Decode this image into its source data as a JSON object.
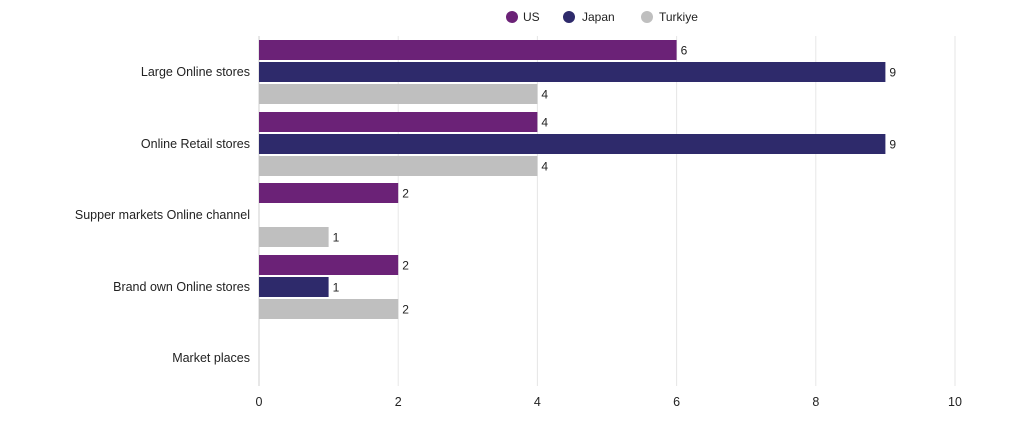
{
  "chart_data": {
    "type": "bar",
    "orientation": "horizontal",
    "categories": [
      "Large Online stores",
      "Online Retail stores",
      "Supper markets Online channel",
      "Brand own Online stores",
      "Market places"
    ],
    "series": [
      {
        "name": "US",
        "color": "#6b2277",
        "values": [
          6,
          4,
          2,
          2,
          null
        ]
      },
      {
        "name": "Japan",
        "color": "#2e2a6b",
        "values": [
          9,
          9,
          null,
          1,
          null
        ]
      },
      {
        "name": "Turkiye",
        "color": "#bfbfbf",
        "values": [
          4,
          4,
          1,
          2,
          null
        ]
      }
    ],
    "xlim": [
      0,
      10
    ],
    "xticks": [
      0,
      2,
      4,
      6,
      8,
      10
    ],
    "grid": true,
    "legend_position": "top-center",
    "data_labels": true
  }
}
